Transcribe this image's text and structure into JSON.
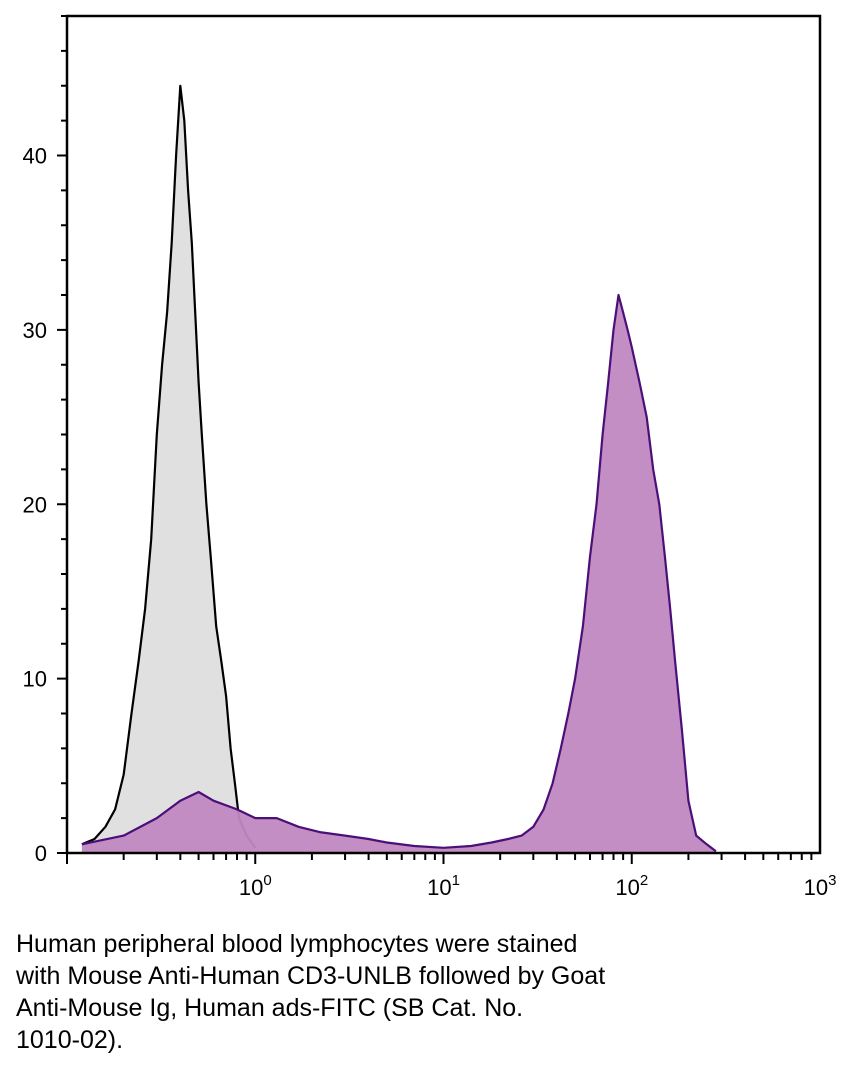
{
  "chart_data": {
    "type": "area",
    "title": "",
    "xlabel": "",
    "ylabel": "",
    "x_scale": "log",
    "xlim": [
      0.1,
      1000
    ],
    "ylim": [
      0,
      48
    ],
    "x_ticks": [
      {
        "value": 1,
        "base": "10",
        "exp": "0"
      },
      {
        "value": 10,
        "base": "10",
        "exp": "1"
      },
      {
        "value": 100,
        "base": "10",
        "exp": "2"
      },
      {
        "value": 1000,
        "base": "10",
        "exp": "3"
      }
    ],
    "y_ticks": [
      {
        "value": 0,
        "label": "0"
      },
      {
        "value": 10,
        "label": "10"
      },
      {
        "value": 20,
        "label": "20"
      },
      {
        "value": 30,
        "label": "30"
      },
      {
        "value": 40,
        "label": "40"
      }
    ],
    "series": [
      {
        "role": "control",
        "fill": "#e0e0e0",
        "stroke": "#000000",
        "x": [
          0.12,
          0.14,
          0.16,
          0.18,
          0.2,
          0.22,
          0.24,
          0.26,
          0.28,
          0.3,
          0.32,
          0.34,
          0.36,
          0.38,
          0.4,
          0.42,
          0.44,
          0.46,
          0.48,
          0.5,
          0.52,
          0.55,
          0.58,
          0.62,
          0.66,
          0.7,
          0.74,
          0.78,
          0.82,
          0.9,
          1.0
        ],
        "values": [
          0.5,
          0.8,
          1.5,
          2.5,
          4.5,
          8,
          11,
          14,
          18,
          24,
          28,
          31,
          35,
          40,
          44,
          42,
          38,
          35,
          31,
          27,
          24,
          20,
          17,
          13,
          11,
          9,
          6,
          4,
          2,
          1,
          0.3
        ]
      },
      {
        "role": "stained",
        "fill": "#c088c0",
        "stroke": "#4b0f7a",
        "x": [
          0.12,
          0.2,
          0.3,
          0.4,
          0.5,
          0.6,
          0.8,
          1.0,
          1.3,
          1.7,
          2.2,
          3,
          4,
          5,
          7,
          10,
          14,
          18,
          22,
          26,
          30,
          34,
          38,
          42,
          46,
          50,
          55,
          60,
          65,
          70,
          75,
          80,
          85,
          90,
          95,
          100,
          110,
          120,
          130,
          140,
          150,
          160,
          170,
          185,
          200,
          220,
          250,
          280
        ],
        "values": [
          0.5,
          1,
          2,
          3,
          3.5,
          3,
          2.5,
          2,
          2,
          1.5,
          1.2,
          1,
          0.8,
          0.6,
          0.4,
          0.3,
          0.4,
          0.6,
          0.8,
          1,
          1.5,
          2.5,
          4,
          6,
          8,
          10,
          13,
          17,
          20,
          24,
          27,
          30,
          32,
          31,
          30,
          29,
          27,
          25,
          22,
          20,
          17,
          14,
          11,
          7,
          3,
          1,
          0.5,
          0.1
        ]
      }
    ]
  },
  "caption": {
    "lines": [
      "Human peripheral blood lymphocytes were stained",
      "with Mouse Anti-Human CD3-UNLB followed by Goat",
      "Anti-Mouse Ig, Human ads-FITC (SB Cat. No.",
      "1010-02)."
    ]
  }
}
